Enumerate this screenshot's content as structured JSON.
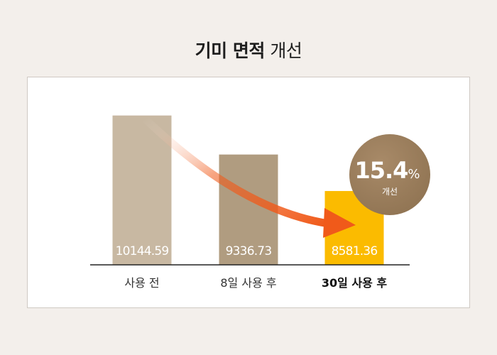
{
  "title": {
    "bold_part": "기미 면적",
    "regular_part": "개선"
  },
  "chart_data": {
    "type": "bar",
    "categories": [
      "사용 전",
      "8일 사용 후",
      "30일 사용 후"
    ],
    "values": [
      10144.59,
      9336.73,
      8581.36
    ],
    "value_labels": [
      "10144.59",
      "9336.73",
      "8581.36"
    ],
    "title": "기미 면적 개선",
    "xlabel": "",
    "ylabel": "",
    "grid": false,
    "legend": "none",
    "colors": [
      "#c8b8a2",
      "#b09c80",
      "#fbbb00"
    ],
    "highlight_category": "30일 사용 후",
    "annotation": {
      "value": "15.4",
      "unit": "%",
      "label": "개선"
    },
    "arrow_color": "#f05a1a",
    "badge_color": "#8f7352"
  }
}
